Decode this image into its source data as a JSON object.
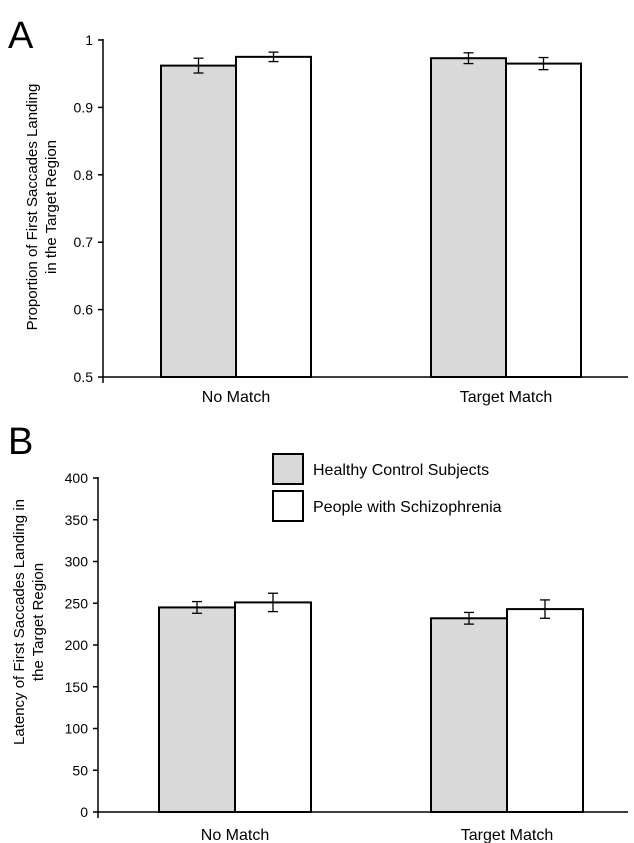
{
  "chart_data": [
    {
      "panel": "A",
      "type": "bar",
      "categories": [
        "No Match",
        "Target Match"
      ],
      "series": [
        {
          "name": "Healthy Control Subjects",
          "values": [
            0.962,
            0.973
          ],
          "errors": [
            0.011,
            0.008
          ]
        },
        {
          "name": "People with Schizophrenia",
          "values": [
            0.975,
            0.965
          ],
          "errors": [
            0.007,
            0.009
          ]
        }
      ],
      "ylabel_lines": [
        "Proportion of First Saccades Landing",
        "in the Target Region"
      ],
      "ylim": [
        0.5,
        1
      ],
      "yticks": [
        0.5,
        0.6,
        0.7,
        0.8,
        0.9,
        1
      ],
      "ytick_labels": [
        "0.5",
        "0.6",
        "0.7",
        "0.8",
        "0.9",
        "1"
      ]
    },
    {
      "panel": "B",
      "type": "bar",
      "categories": [
        "No Match",
        "Target Match"
      ],
      "series": [
        {
          "name": "Healthy Control Subjects",
          "values": [
            245,
            232
          ],
          "errors": [
            7,
            7
          ]
        },
        {
          "name": "People with Schizophrenia",
          "values": [
            251,
            243
          ],
          "errors": [
            11,
            11
          ]
        }
      ],
      "ylabel_lines": [
        "Latency of First Saccades Landing in",
        "the Target Region"
      ],
      "ylim": [
        0,
        400
      ],
      "yticks": [
        0,
        50,
        100,
        150,
        200,
        250,
        300,
        350,
        400
      ],
      "ytick_labels": [
        "0",
        "50",
        "100",
        "150",
        "200",
        "250",
        "300",
        "350",
        "400"
      ],
      "legend": {
        "position": "top-center",
        "entries": [
          "Healthy Control Subjects",
          "People with Schizophrenia"
        ]
      }
    }
  ],
  "colors": {
    "control": "#d9d9d9",
    "schizophrenia": "#ffffff",
    "stroke": "#000000"
  }
}
